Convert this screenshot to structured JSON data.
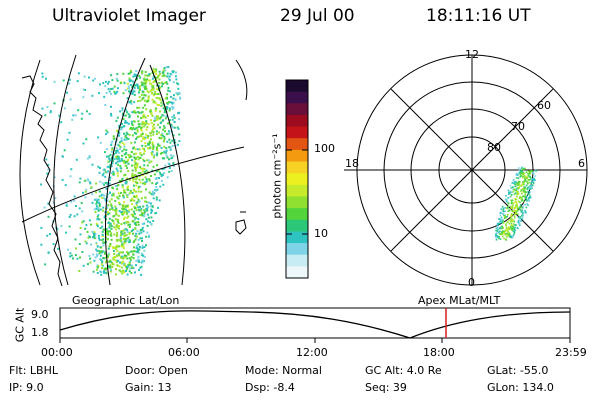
{
  "header": {
    "instrument": "Ultraviolet Imager",
    "date": "29 Jul 00",
    "time": "18:11:16 UT"
  },
  "colorbar": {
    "unit_label": "photon cm⁻²s⁻¹",
    "ticks": [
      "100",
      "10"
    ],
    "colors": [
      "#1a0a2e",
      "#3b0f4a",
      "#6a0f3a",
      "#9c0c1e",
      "#c4141a",
      "#e25512",
      "#f39a10",
      "#f5d224",
      "#ecf020",
      "#c5eb2a",
      "#8fe030",
      "#52d43a",
      "#2cc878",
      "#2ec2c0",
      "#7ed4e6",
      "#c8ecf4",
      "#eef8fb"
    ]
  },
  "polar": {
    "labels": {
      "top": "12",
      "left": "18",
      "right": "6",
      "bottom": "0"
    },
    "rings": [
      "60",
      "70",
      "80"
    ]
  },
  "map_label": "Geographic Lat/Lon",
  "polar_label": "Apex MLat/MLT",
  "timeline": {
    "ylabel": "GC Alt",
    "yticks": [
      "9.0",
      "1.8"
    ],
    "xticks": [
      "00:00",
      "06:00",
      "12:00",
      "18:00",
      "23:59"
    ],
    "marker_color": "#d42020"
  },
  "info": {
    "flt": "Flt: LBHL",
    "ip": "IP:  9.0",
    "door": "Door: Open",
    "gain": "Gain: 13",
    "mode": "Mode: Normal",
    "dsp": "Dsp:    -8.4",
    "gcalt": "GC Alt: 4.0 Re",
    "seq": "Seq: 39",
    "glat": "GLat: -55.0",
    "glon": "GLon: 134.0"
  }
}
